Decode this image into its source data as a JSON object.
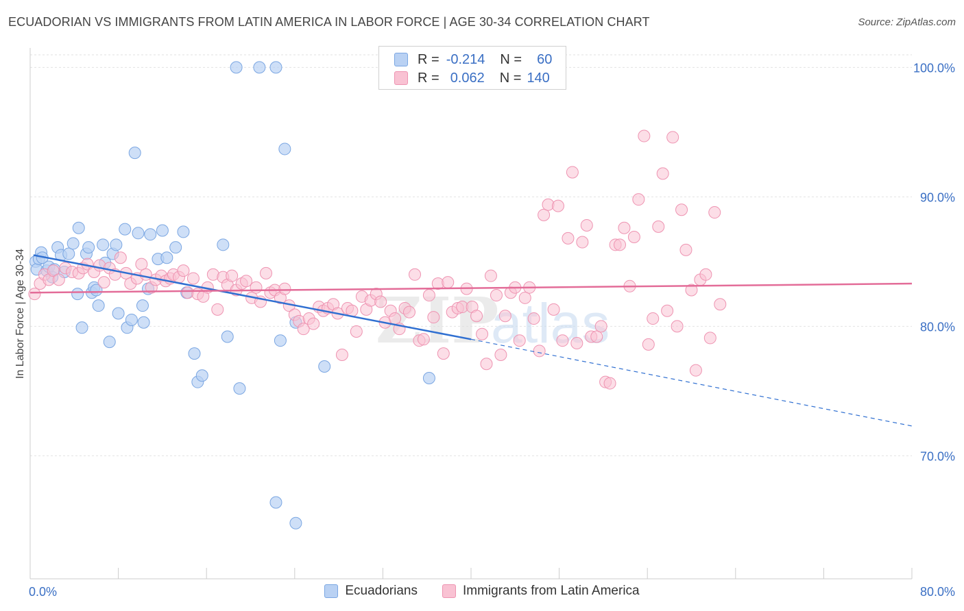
{
  "header": {
    "title": "ECUADORIAN VS IMMIGRANTS FROM LATIN AMERICA IN LABOR FORCE | AGE 30-34 CORRELATION CHART",
    "source": "Source: ZipAtlas.com"
  },
  "legend": {
    "rows": [
      {
        "r_label": "R =",
        "r_value": "-0.214",
        "n_label": "N =",
        "n_value": "60"
      },
      {
        "r_label": "R =",
        "r_value": "0.062",
        "n_label": "N =",
        "n_value": "140"
      }
    ]
  },
  "colors": {
    "blue_fill": "#b9d1f3",
    "blue_stroke": "#7aa6e2",
    "blue_line": "#2f6fd1",
    "pink_fill": "#f9c2d3",
    "pink_stroke": "#ee93b1",
    "pink_line": "#e36c98",
    "axis_text": "#3a6fc4"
  },
  "watermark": {
    "zip": "ZIP",
    "atlas": "atlas"
  },
  "chart_data": {
    "type": "scatter",
    "title": "ECUADORIAN VS IMMIGRANTS FROM LATIN AMERICA IN LABOR FORCE | AGE 30-34 CORRELATION CHART",
    "xlabel": "",
    "ylabel": "In Labor Force | Age 30-34",
    "xlim": [
      0,
      80
    ],
    "ylim": [
      60.5,
      101.5
    ],
    "x_tick_labels": [
      "0.0%",
      "80.0%"
    ],
    "y_ticks": [
      70,
      80,
      90,
      100
    ],
    "y_tick_labels": [
      "70.0%",
      "80.0%",
      "90.0%",
      "100.0%"
    ],
    "grid": true,
    "series": [
      {
        "name": "Ecuadorians",
        "r": -0.214,
        "n": 60,
        "trend": {
          "x0": 0.3,
          "y0": 85.5,
          "x1": 40,
          "y1": 79.0,
          "dash_to_x": 80,
          "dash_to_y": 72.3
        },
        "points": [
          [
            0.5,
            85.0
          ],
          [
            0.6,
            84.4
          ],
          [
            0.8,
            85.2
          ],
          [
            1.0,
            85.7
          ],
          [
            1.1,
            85.3
          ],
          [
            1.5,
            84.3
          ],
          [
            1.7,
            84.6
          ],
          [
            2.0,
            83.8
          ],
          [
            2.2,
            84.4
          ],
          [
            2.5,
            86.1
          ],
          [
            2.8,
            85.5
          ],
          [
            3.1,
            84.2
          ],
          [
            3.5,
            85.6
          ],
          [
            3.9,
            86.4
          ],
          [
            4.3,
            82.5
          ],
          [
            4.4,
            87.6
          ],
          [
            4.7,
            79.9
          ],
          [
            5.1,
            85.6
          ],
          [
            5.3,
            86.1
          ],
          [
            5.6,
            82.6
          ],
          [
            5.8,
            83.0
          ],
          [
            6.0,
            82.8
          ],
          [
            6.2,
            81.6
          ],
          [
            6.6,
            86.3
          ],
          [
            6.8,
            84.9
          ],
          [
            7.2,
            78.8
          ],
          [
            7.5,
            85.6
          ],
          [
            7.8,
            86.3
          ],
          [
            8.0,
            81.0
          ],
          [
            8.6,
            87.5
          ],
          [
            8.8,
            79.9
          ],
          [
            9.2,
            80.5
          ],
          [
            9.5,
            93.4
          ],
          [
            9.8,
            87.2
          ],
          [
            10.2,
            81.6
          ],
          [
            10.3,
            80.3
          ],
          [
            10.7,
            82.9
          ],
          [
            10.9,
            87.1
          ],
          [
            11.6,
            85.2
          ],
          [
            12.0,
            87.4
          ],
          [
            12.4,
            85.3
          ],
          [
            13.2,
            86.1
          ],
          [
            13.9,
            87.3
          ],
          [
            14.2,
            82.6
          ],
          [
            14.9,
            77.9
          ],
          [
            15.2,
            75.7
          ],
          [
            15.6,
            76.2
          ],
          [
            17.5,
            86.3
          ],
          [
            17.9,
            79.2
          ],
          [
            18.7,
            100.0
          ],
          [
            19.0,
            75.2
          ],
          [
            20.8,
            100.0
          ],
          [
            22.3,
            100.0
          ],
          [
            22.3,
            66.4
          ],
          [
            22.7,
            78.9
          ],
          [
            23.1,
            93.7
          ],
          [
            24.1,
            64.8
          ],
          [
            24.1,
            80.3
          ],
          [
            26.7,
            76.9
          ],
          [
            36.2,
            76.0
          ]
        ]
      },
      {
        "name": "Immigrants from Latin America",
        "r": 0.062,
        "n": 140,
        "trend": {
          "x0": 0,
          "y0": 82.6,
          "x1": 80,
          "y1": 83.3
        },
        "points": [
          [
            0.4,
            82.5
          ],
          [
            0.9,
            83.3
          ],
          [
            1.3,
            84.0
          ],
          [
            1.7,
            83.6
          ],
          [
            2.1,
            84.3
          ],
          [
            2.6,
            83.6
          ],
          [
            3.2,
            84.5
          ],
          [
            3.8,
            84.2
          ],
          [
            4.4,
            84.1
          ],
          [
            4.8,
            84.5
          ],
          [
            5.2,
            84.8
          ],
          [
            5.8,
            84.2
          ],
          [
            6.3,
            84.7
          ],
          [
            6.7,
            83.4
          ],
          [
            7.2,
            84.5
          ],
          [
            7.7,
            84.0
          ],
          [
            8.2,
            85.3
          ],
          [
            8.7,
            84.1
          ],
          [
            9.1,
            83.3
          ],
          [
            9.7,
            83.7
          ],
          [
            10.1,
            84.8
          ],
          [
            10.5,
            84.0
          ],
          [
            11.0,
            83.0
          ],
          [
            11.4,
            83.6
          ],
          [
            11.9,
            83.9
          ],
          [
            12.3,
            83.5
          ],
          [
            12.7,
            83.7
          ],
          [
            13.0,
            84.0
          ],
          [
            13.5,
            83.8
          ],
          [
            13.9,
            84.3
          ],
          [
            14.3,
            82.6
          ],
          [
            14.8,
            83.7
          ],
          [
            15.2,
            82.5
          ],
          [
            15.7,
            82.3
          ],
          [
            16.1,
            83.0
          ],
          [
            16.6,
            84.0
          ],
          [
            17.0,
            81.3
          ],
          [
            17.5,
            83.8
          ],
          [
            17.9,
            83.2
          ],
          [
            18.3,
            83.9
          ],
          [
            18.7,
            82.8
          ],
          [
            19.2,
            83.3
          ],
          [
            19.6,
            83.5
          ],
          [
            20.1,
            82.2
          ],
          [
            20.5,
            83.0
          ],
          [
            20.9,
            81.9
          ],
          [
            21.4,
            84.1
          ],
          [
            21.8,
            82.6
          ],
          [
            22.2,
            82.8
          ],
          [
            22.7,
            82.2
          ],
          [
            23.1,
            82.9
          ],
          [
            23.5,
            81.6
          ],
          [
            24.0,
            80.9
          ],
          [
            24.4,
            80.4
          ],
          [
            24.8,
            79.8
          ],
          [
            25.3,
            80.6
          ],
          [
            25.7,
            80.2
          ],
          [
            26.2,
            81.5
          ],
          [
            26.6,
            81.2
          ],
          [
            27.0,
            81.4
          ],
          [
            27.5,
            81.7
          ],
          [
            27.9,
            81.0
          ],
          [
            28.3,
            77.8
          ],
          [
            28.8,
            81.4
          ],
          [
            29.2,
            81.2
          ],
          [
            29.6,
            79.6
          ],
          [
            30.1,
            82.3
          ],
          [
            30.5,
            81.3
          ],
          [
            30.9,
            82.0
          ],
          [
            31.4,
            82.5
          ],
          [
            31.8,
            81.9
          ],
          [
            32.2,
            80.3
          ],
          [
            32.7,
            81.2
          ],
          [
            33.1,
            80.6
          ],
          [
            33.5,
            79.8
          ],
          [
            34.0,
            81.4
          ],
          [
            34.4,
            81.1
          ],
          [
            34.9,
            84.0
          ],
          [
            35.3,
            78.9
          ],
          [
            35.7,
            79.0
          ],
          [
            36.2,
            82.4
          ],
          [
            36.6,
            80.7
          ],
          [
            37.0,
            83.3
          ],
          [
            37.5,
            77.9
          ],
          [
            37.9,
            83.4
          ],
          [
            38.3,
            81.1
          ],
          [
            38.8,
            81.4
          ],
          [
            39.2,
            81.5
          ],
          [
            39.6,
            82.9
          ],
          [
            40.1,
            81.5
          ],
          [
            40.5,
            80.8
          ],
          [
            41.0,
            79.4
          ],
          [
            41.4,
            77.1
          ],
          [
            41.8,
            83.9
          ],
          [
            42.3,
            82.4
          ],
          [
            42.7,
            77.8
          ],
          [
            43.1,
            80.8
          ],
          [
            43.6,
            82.6
          ],
          [
            44.0,
            83.0
          ],
          [
            44.4,
            78.9
          ],
          [
            44.9,
            82.2
          ],
          [
            45.3,
            83.0
          ],
          [
            45.7,
            80.6
          ],
          [
            46.2,
            78.1
          ],
          [
            46.6,
            88.6
          ],
          [
            47.0,
            89.4
          ],
          [
            47.5,
            81.3
          ],
          [
            47.9,
            89.3
          ],
          [
            48.3,
            78.9
          ],
          [
            48.8,
            86.8
          ],
          [
            49.2,
            91.9
          ],
          [
            49.6,
            78.7
          ],
          [
            50.1,
            86.5
          ],
          [
            50.5,
            87.8
          ],
          [
            50.9,
            79.2
          ],
          [
            51.4,
            79.2
          ],
          [
            51.8,
            80.0
          ],
          [
            52.2,
            75.7
          ],
          [
            52.6,
            75.6
          ],
          [
            53.1,
            86.3
          ],
          [
            53.5,
            86.3
          ],
          [
            53.9,
            87.6
          ],
          [
            54.4,
            83.1
          ],
          [
            54.8,
            86.9
          ],
          [
            55.2,
            89.8
          ],
          [
            55.7,
            94.7
          ],
          [
            56.1,
            78.6
          ],
          [
            56.5,
            80.6
          ],
          [
            57.0,
            87.7
          ],
          [
            57.4,
            91.8
          ],
          [
            57.8,
            81.2
          ],
          [
            58.3,
            94.6
          ],
          [
            58.7,
            80.0
          ],
          [
            59.1,
            89.0
          ],
          [
            59.5,
            85.9
          ],
          [
            60.0,
            82.8
          ],
          [
            60.4,
            76.6
          ],
          [
            60.8,
            83.6
          ],
          [
            61.3,
            84.0
          ],
          [
            61.7,
            79.1
          ],
          [
            62.1,
            88.8
          ],
          [
            62.6,
            81.7
          ]
        ]
      }
    ]
  }
}
